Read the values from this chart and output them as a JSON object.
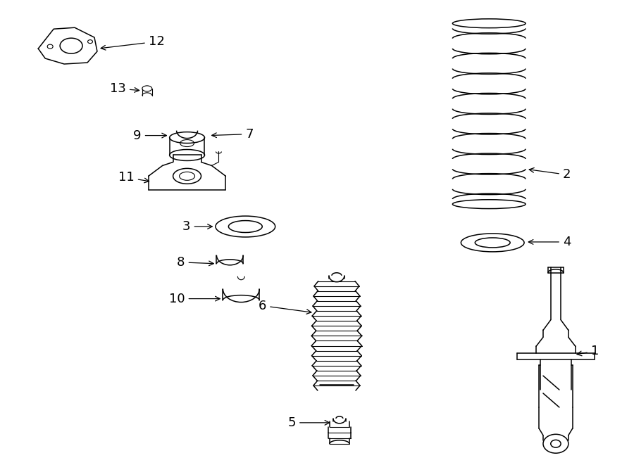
{
  "bg_color": "#ffffff",
  "line_color": "#000000",
  "label_color": "#000000",
  "figsize": [
    9.0,
    6.61
  ],
  "dpi": 100
}
